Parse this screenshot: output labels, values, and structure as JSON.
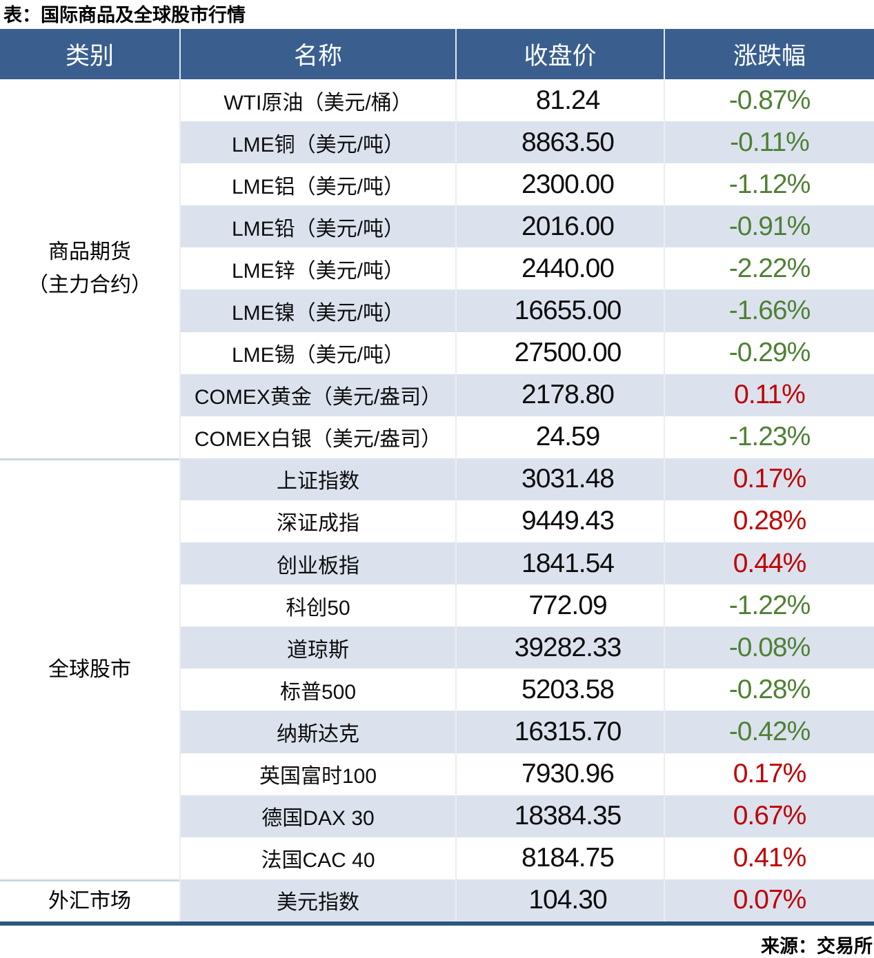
{
  "title": "表：国际商品及全球股市行情",
  "source": "来源：交易所",
  "colors": {
    "header_bg": "#3a5f8f",
    "row_shade": "#dbe2ee",
    "positive_red": "#c00000",
    "negative_green": "#4f8034",
    "table_bottom_border": "#2d5680"
  },
  "chart_data": {
    "type": "table",
    "title": "表：国际商品及全球股市行情",
    "columns": [
      "类别",
      "名称",
      "收盘价",
      "涨跌幅"
    ],
    "groups": [
      {
        "category_lines": [
          "商品期货",
          "（主力合约）"
        ],
        "rows": [
          [
            "WTI原油（美元/桶）",
            "81.24",
            "-0.87%"
          ],
          [
            "LME铜（美元/吨）",
            "8863.50",
            "-0.11%"
          ],
          [
            "LME铝（美元/吨）",
            "2300.00",
            "-1.12%"
          ],
          [
            "LME铅（美元/吨）",
            "2016.00",
            "-0.91%"
          ],
          [
            "LME锌（美元/吨）",
            "2440.00",
            "-2.22%"
          ],
          [
            "LME镍（美元/吨）",
            "16655.00",
            "-1.66%"
          ],
          [
            "LME锡（美元/吨）",
            "27500.00",
            "-0.29%"
          ],
          [
            "COMEX黄金（美元/盎司）",
            "2178.80",
            "0.11%"
          ],
          [
            "COMEX白银（美元/盎司）",
            "24.59",
            "-1.23%"
          ]
        ]
      },
      {
        "category_lines": [
          "全球股市"
        ],
        "rows": [
          [
            "上证指数",
            "3031.48",
            "0.17%"
          ],
          [
            "深证成指",
            "9449.43",
            "0.28%"
          ],
          [
            "创业板指",
            "1841.54",
            "0.44%"
          ],
          [
            "科创50",
            "772.09",
            "-1.22%"
          ],
          [
            "道琼斯",
            "39282.33",
            "-0.08%"
          ],
          [
            "标普500",
            "5203.58",
            "-0.28%"
          ],
          [
            "纳斯达克",
            "16315.70",
            "-0.42%"
          ],
          [
            "英国富时100",
            "7930.96",
            "0.17%"
          ],
          [
            "德国DAX 30",
            "18384.35",
            "0.67%"
          ],
          [
            "法国CAC 40",
            "8184.75",
            "0.41%"
          ]
        ]
      },
      {
        "category_lines": [
          "外汇市场"
        ],
        "rows": [
          [
            "美元指数",
            "104.30",
            "0.07%"
          ]
        ]
      }
    ],
    "legend": "change column: negative values green, positive values red",
    "source": "来源：交易所"
  }
}
